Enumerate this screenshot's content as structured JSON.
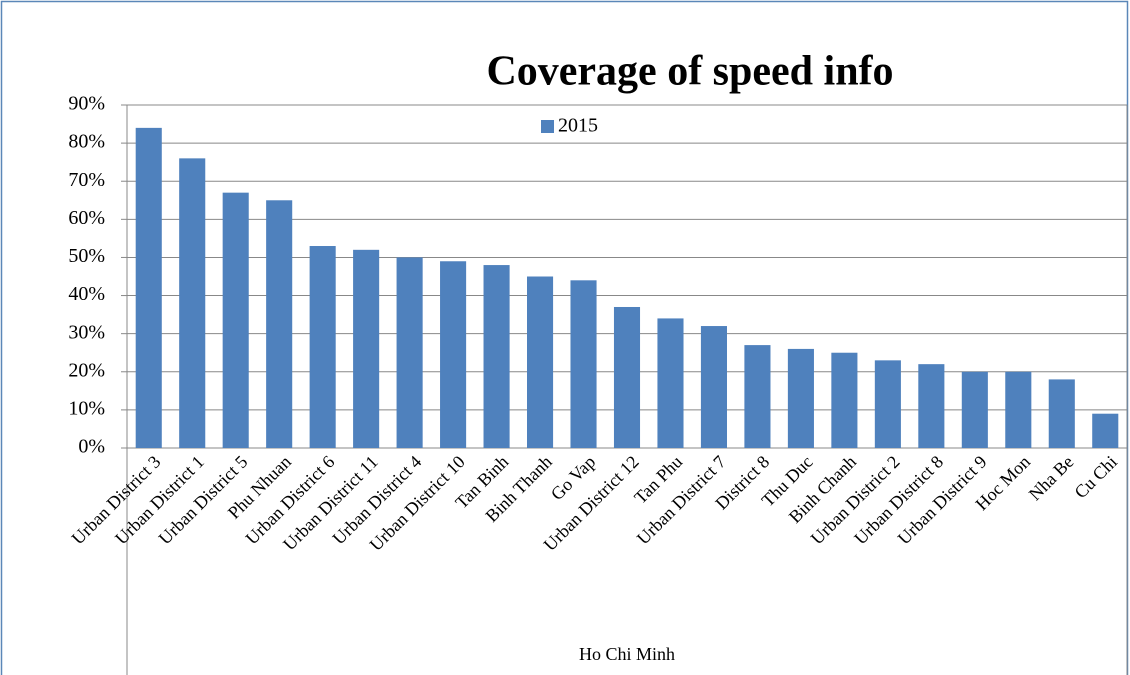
{
  "chart_data": {
    "type": "bar",
    "title": "Coverage of speed info",
    "xlabel": "Ho Chi Minh",
    "categories": [
      "Urban District 3",
      "Urban District 1",
      "Urban District 5",
      "Phu Nhuan",
      "Urban District 6",
      "Urban District 11",
      "Urban District 4",
      "Urban District 10",
      "Tan Binh",
      "Binh Thanh",
      "Go Vap",
      "Urban District 12",
      "Tan Phu",
      "Urban District 7",
      "District 8",
      "Thu Duc",
      "Binh Chanh",
      "Urban District 2",
      "Urban District 8",
      "Urban District 9",
      "Hoc Mon",
      "Nha Be",
      "Cu Chi"
    ],
    "series": [
      {
        "name": "2015",
        "color": "#4f81bd",
        "values": [
          84,
          76,
          67,
          65,
          53,
          52,
          50,
          49,
          48,
          45,
          44,
          37,
          34,
          32,
          27,
          26,
          25,
          23,
          22,
          20,
          20,
          18,
          9
        ]
      }
    ],
    "ylim": [
      0,
      90
    ],
    "yticks": [
      {
        "value": 0,
        "label": "0%"
      },
      {
        "value": 10,
        "label": "10%"
      },
      {
        "value": 20,
        "label": "20%"
      },
      {
        "value": 30,
        "label": "30%"
      },
      {
        "value": 40,
        "label": "40%"
      },
      {
        "value": 50,
        "label": "50%"
      },
      {
        "value": 60,
        "label": "60%"
      },
      {
        "value": 70,
        "label": "70%"
      },
      {
        "value": 80,
        "label": "80%"
      },
      {
        "value": 90,
        "label": "90%"
      }
    ],
    "grid": true,
    "legend": "top"
  }
}
